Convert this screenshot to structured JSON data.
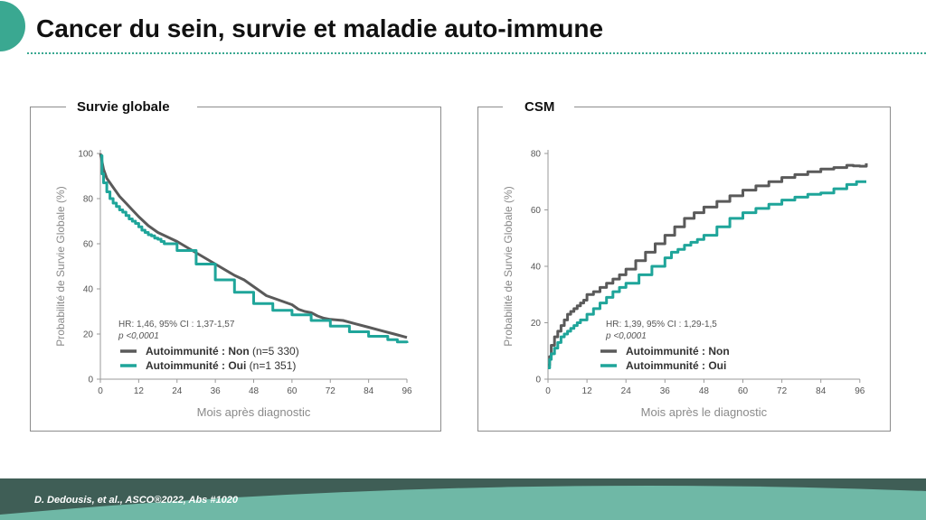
{
  "slide": {
    "title": "Cancer du sein, survie et maladie auto-immune",
    "citation": "D. Dedousis, et al.,  ASCO®2022, Abs #1020"
  },
  "colors": {
    "non": "#5a5a5a",
    "oui": "#1fa59a",
    "accent": "#3aa891",
    "footer_dark": "#3f5e56",
    "footer_light": "#6fb8a6"
  },
  "chart_data": [
    {
      "type": "line",
      "title": "Survie globale",
      "xlabel": "Mois après diagnostic",
      "ylabel": "Probabilité de Survie Globale (%)",
      "xlim": [
        0,
        96
      ],
      "ylim": [
        0,
        100
      ],
      "xticks": [
        0,
        12,
        24,
        36,
        48,
        60,
        72,
        84,
        96
      ],
      "yticks": [
        0,
        20,
        40,
        60,
        80,
        100
      ],
      "annotation": {
        "hr": "HR: 1,46, 95% CI : 1,37-1,57",
        "p": "p <0,0001"
      },
      "legend": [
        {
          "label": "Autoimmunité : Non",
          "n": "(n=5 330)"
        },
        {
          "label": "Autoimmunité : Oui",
          "n": "(n=1 351)"
        }
      ],
      "series": [
        {
          "name": "Autoimmunité : Non",
          "step": false,
          "x": [
            0,
            1,
            2,
            4,
            6,
            8,
            10,
            12,
            15,
            18,
            21,
            24,
            30,
            36,
            42,
            45,
            48,
            50,
            52,
            54,
            56,
            58,
            60,
            62,
            64,
            66,
            68,
            70,
            72,
            76,
            80,
            84,
            88,
            92,
            96
          ],
          "y": [
            100,
            93,
            89,
            85,
            81,
            78,
            75,
            72,
            68,
            65,
            63,
            61,
            56,
            51,
            46,
            44,
            41,
            39,
            37,
            36,
            35,
            34,
            33,
            31,
            30,
            29.5,
            28,
            27,
            26.5,
            26,
            24.5,
            23,
            21.5,
            20,
            18.5
          ]
        },
        {
          "name": "Autoimmunité : Oui",
          "step": true,
          "x": [
            0,
            0.5,
            1,
            2,
            3,
            4,
            5,
            6,
            7,
            8,
            9,
            10,
            11,
            12,
            13,
            14,
            15,
            16,
            17,
            18,
            19,
            20,
            24,
            30,
            36,
            42,
            48,
            54,
            60,
            66,
            72,
            78,
            84,
            90,
            93,
            96
          ],
          "y": [
            99,
            91,
            87,
            83,
            80,
            78,
            76.5,
            75,
            74,
            72.5,
            71,
            70,
            69,
            67.5,
            66,
            65,
            64,
            63.5,
            62.5,
            62,
            61,
            60,
            57,
            51,
            44,
            38.5,
            33.5,
            30.5,
            28.5,
            26,
            23.5,
            21,
            19,
            17.5,
            16.5,
            16
          ]
        }
      ]
    },
    {
      "type": "line",
      "title": "CSM",
      "xlabel": "Mois après le diagnostic",
      "ylabel": "Probabilité de Survie Globale (%)",
      "xlim": [
        0,
        98
      ],
      "ylim": [
        0,
        80
      ],
      "xticks": [
        0,
        12,
        24,
        36,
        48,
        60,
        72,
        84,
        96
      ],
      "yticks": [
        0,
        20,
        40,
        60,
        80
      ],
      "annotation": {
        "hr": "HR: 1,39, 95% CI : 1,29-1,5",
        "p": "p <0,0001"
      },
      "legend": [
        {
          "label": "Autoimmunité : Non",
          "n": ""
        },
        {
          "label": "Autoimmunité : Oui",
          "n": ""
        }
      ],
      "series": [
        {
          "name": "Autoimmunité : Non",
          "step": true,
          "x": [
            0,
            0.5,
            1,
            2,
            3,
            4,
            5,
            6,
            7,
            8,
            9,
            10,
            11,
            12,
            14,
            16,
            18,
            20,
            22,
            24,
            27,
            30,
            33,
            36,
            39,
            42,
            45,
            48,
            52,
            56,
            60,
            64,
            68,
            72,
            76,
            80,
            84,
            88,
            92,
            94,
            96,
            98
          ],
          "y": [
            5,
            8,
            12,
            15,
            17,
            19,
            21,
            23,
            24,
            25,
            26,
            27,
            28,
            30,
            31,
            32.5,
            34,
            35.5,
            37,
            39,
            42,
            45,
            48,
            51,
            54,
            57,
            59,
            61,
            63,
            65,
            67,
            68.5,
            70,
            71.5,
            72.5,
            73.5,
            74.5,
            75,
            75.8,
            75.6,
            75.5,
            76.5
          ]
        },
        {
          "name": "Autoimmunité : Oui",
          "step": true,
          "x": [
            0,
            0.5,
            1,
            2,
            3,
            4,
            5,
            6,
            7,
            8,
            9,
            10,
            12,
            14,
            16,
            18,
            20,
            22,
            24,
            28,
            32,
            36,
            38,
            40,
            42,
            44,
            46,
            48,
            52,
            56,
            60,
            64,
            68,
            72,
            76,
            80,
            84,
            88,
            92,
            95,
            98
          ],
          "y": [
            4,
            7,
            9,
            11,
            13,
            15,
            16,
            17,
            18,
            19,
            20,
            21,
            23,
            25,
            27,
            29,
            31,
            32.5,
            34,
            37,
            40,
            43,
            45,
            46,
            47.5,
            48.5,
            49.5,
            51,
            54,
            57,
            59,
            60.5,
            62,
            63.5,
            64.5,
            65.5,
            66,
            67.5,
            69,
            70,
            70
          ]
        }
      ]
    }
  ]
}
